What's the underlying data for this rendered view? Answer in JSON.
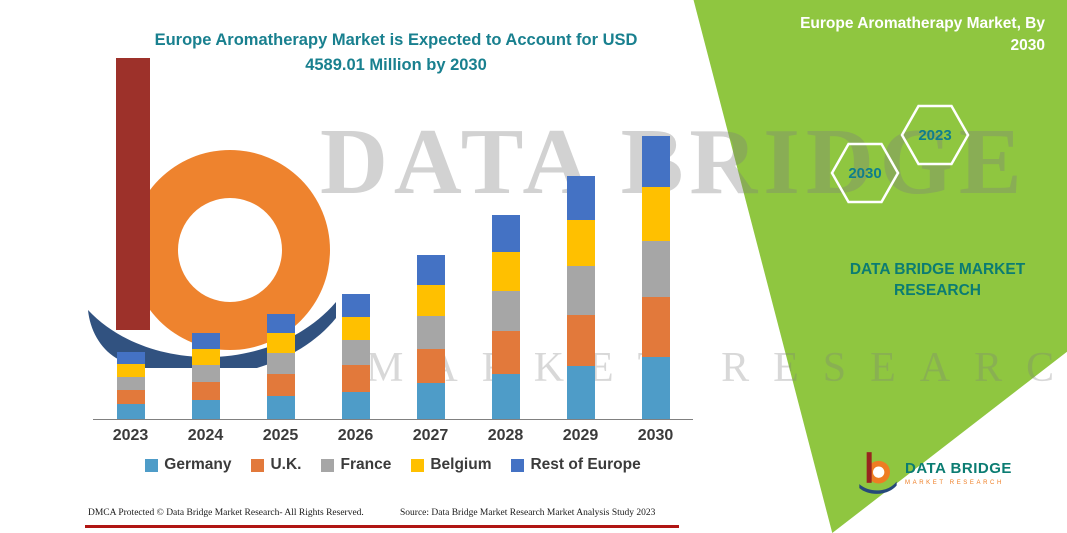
{
  "title": {
    "line1": "Europe Aromatherapy Market is Expected to Account for USD",
    "line2": "4589.01 Million by 2030"
  },
  "side_panel": {
    "title_line1": "Europe Aromatherapy Market, By",
    "title_line2": "2030",
    "hexagon_years": [
      "2030",
      "2023"
    ],
    "brand": "DATA BRIDGE MARKET RESEARCH"
  },
  "watermark": {
    "brand": "DATA BRIDGE",
    "sub": "MARKET RESEARCH"
  },
  "brand_logo": {
    "name": "DATA BRIDGE",
    "sub": "MARKET RESEARCH"
  },
  "footer": {
    "dmca": "DMCA Protected © Data Bridge Market Research-  All Rights Reserved.",
    "source": "Source: Data Bridge Market Research  Market Analysis Study 2023"
  },
  "colors": {
    "accent_teal": "#19808F",
    "panel_green": "#8FC640",
    "brand_teal": "#0B7C72",
    "brand_orange": "#EE7D23",
    "red_line": "#B01513"
  },
  "chart_data": {
    "type": "bar",
    "stacked": true,
    "title": "Europe Aromatherapy Market is Expected to Account for USD 4589.01 Million by 2030",
    "categories": [
      "2023",
      "2024",
      "2025",
      "2026",
      "2027",
      "2028",
      "2029",
      "2030"
    ],
    "series": [
      {
        "name": "Germany",
        "color": "#4E9CC8",
        "values": [
          239,
          307,
          374,
          446,
          585,
          727,
          866,
          1010
        ]
      },
      {
        "name": "U.K.",
        "color": "#E2793B",
        "values": [
          228,
          293,
          357,
          425,
          558,
          694,
          827,
          964
        ]
      },
      {
        "name": "France",
        "color": "#A6A6A6",
        "values": [
          217,
          279,
          340,
          405,
          532,
          661,
          788,
          918
        ]
      },
      {
        "name": "Belgium",
        "color": "#FFC000",
        "values": [
          206,
          265,
          323,
          385,
          505,
          628,
          748,
          872
        ]
      },
      {
        "name": "Rest of Europe",
        "color": "#4472C4",
        "values": [
          196,
          251,
          306,
          365,
          478,
          595,
          709,
          825.01
        ]
      }
    ],
    "totals_estimated": [
      1086,
      1395,
      1700,
      2026,
      2658,
      3305,
      3938,
      4589.01
    ],
    "units": "USD Million",
    "ylim": [
      0,
      4589.01
    ],
    "grid": false,
    "legend_position": "bottom",
    "note": "Only the 2030 total (USD 4589.01 Million) is printed on the image; other values are estimated from bar heights."
  }
}
